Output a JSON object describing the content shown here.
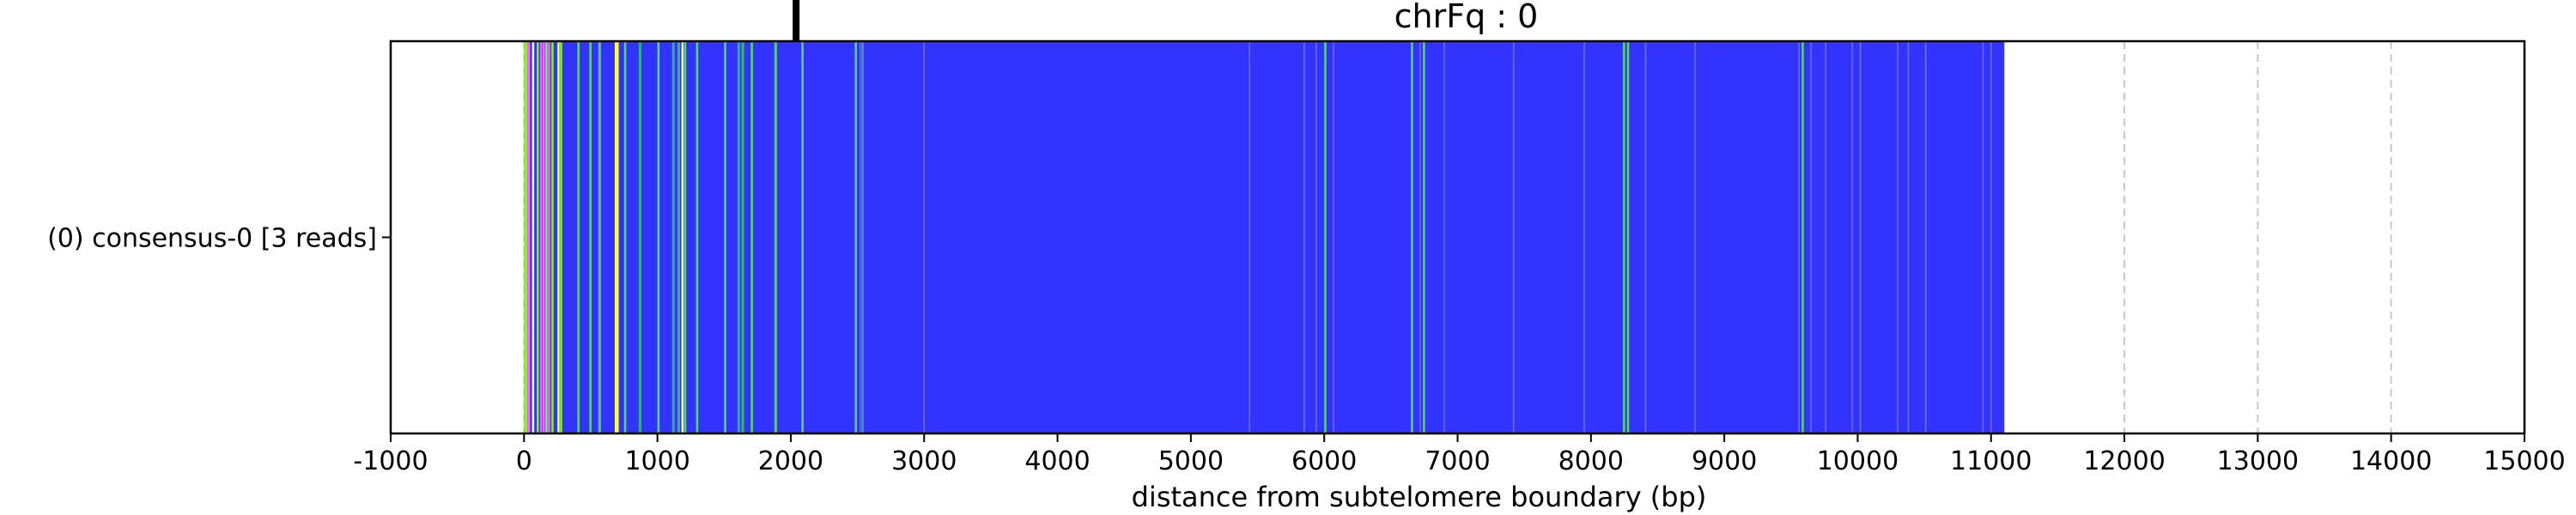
{
  "chart_data": {
    "type": "bar",
    "orientation": "horizontal",
    "title": "chrFq : 0",
    "xlabel": "distance from subtelomere boundary (bp)",
    "ylabel": "",
    "xlim": [
      -1000,
      15000
    ],
    "xticks": [
      -1000,
      0,
      1000,
      2000,
      3000,
      4000,
      5000,
      6000,
      7000,
      8000,
      9000,
      10000,
      11000,
      12000,
      13000,
      14000,
      15000
    ],
    "xtick_labels": [
      "-1000",
      "0",
      "1000",
      "2000",
      "3000",
      "4000",
      "5000",
      "6000",
      "7000",
      "8000",
      "9000",
      "10000",
      "11000",
      "12000",
      "13000",
      "14000",
      "15000"
    ],
    "grid": "vertical dashed at x ticks",
    "categories": [
      "(0) consensus-0 [3 reads]"
    ],
    "track": {
      "start": 0,
      "end": 11100,
      "base_color": "#3333ff",
      "marker_x": 2040,
      "segments": [
        {
          "start": 0,
          "end": 25,
          "color": "#7fff00"
        },
        {
          "start": 25,
          "end": 45,
          "color": "#ff66ff"
        },
        {
          "start": 60,
          "end": 75,
          "color": "#ffff66"
        },
        {
          "start": 95,
          "end": 110,
          "color": "#7fff00"
        },
        {
          "start": 120,
          "end": 135,
          "color": "#ff66ff"
        },
        {
          "start": 140,
          "end": 155,
          "color": "#ff66ff"
        },
        {
          "start": 160,
          "end": 170,
          "color": "#66ff66"
        },
        {
          "start": 180,
          "end": 195,
          "color": "#ff66ff"
        },
        {
          "start": 205,
          "end": 215,
          "color": "#7fff00"
        },
        {
          "start": 250,
          "end": 262,
          "color": "#ffff66"
        },
        {
          "start": 270,
          "end": 280,
          "color": "#7fff00"
        },
        {
          "start": 400,
          "end": 410,
          "color": "#55dd55"
        },
        {
          "start": 490,
          "end": 500,
          "color": "#55dd55"
        },
        {
          "start": 560,
          "end": 570,
          "color": "#55dd55"
        },
        {
          "start": 680,
          "end": 710,
          "color": "#ffff44"
        },
        {
          "start": 750,
          "end": 760,
          "color": "#55dd55"
        },
        {
          "start": 860,
          "end": 880,
          "color": "#33aa88"
        },
        {
          "start": 1000,
          "end": 1010,
          "color": "#55dd55"
        },
        {
          "start": 1110,
          "end": 1130,
          "color": "#33aa88"
        },
        {
          "start": 1150,
          "end": 1170,
          "color": "#2fbf4f"
        },
        {
          "start": 1180,
          "end": 1190,
          "color": "#ffff66"
        },
        {
          "start": 1200,
          "end": 1210,
          "color": "#55dd55"
        },
        {
          "start": 1290,
          "end": 1300,
          "color": "#55dd55"
        },
        {
          "start": 1500,
          "end": 1510,
          "color": "#55dd55"
        },
        {
          "start": 1600,
          "end": 1620,
          "color": "#33aa88"
        },
        {
          "start": 1630,
          "end": 1650,
          "color": "#2fbf4f"
        },
        {
          "start": 1700,
          "end": 1710,
          "color": "#55dd55"
        },
        {
          "start": 1880,
          "end": 1890,
          "color": "#55dd55"
        },
        {
          "start": 2080,
          "end": 2090,
          "color": "#55dd55"
        },
        {
          "start": 2480,
          "end": 2490,
          "color": "#55dd55"
        },
        {
          "start": 2530,
          "end": 2540,
          "color": "#33aa88"
        },
        {
          "start": 6000,
          "end": 6010,
          "color": "#55dd55"
        },
        {
          "start": 6650,
          "end": 6660,
          "color": "#55dd55"
        },
        {
          "start": 6740,
          "end": 6750,
          "color": "#55dd55"
        },
        {
          "start": 8240,
          "end": 8250,
          "color": "#55dd55"
        },
        {
          "start": 8270,
          "end": 8280,
          "color": "#55dd55"
        },
        {
          "start": 9580,
          "end": 9590,
          "color": "#55dd55"
        }
      ],
      "thin_lines": [
        560,
        1880,
        2520,
        3000,
        5440,
        5850,
        5940,
        6070,
        6720,
        6900,
        7420,
        7950,
        8410,
        8780,
        9560,
        9650,
        9760,
        9960,
        10020,
        10300,
        10380,
        10510,
        10940,
        11000
      ]
    }
  }
}
